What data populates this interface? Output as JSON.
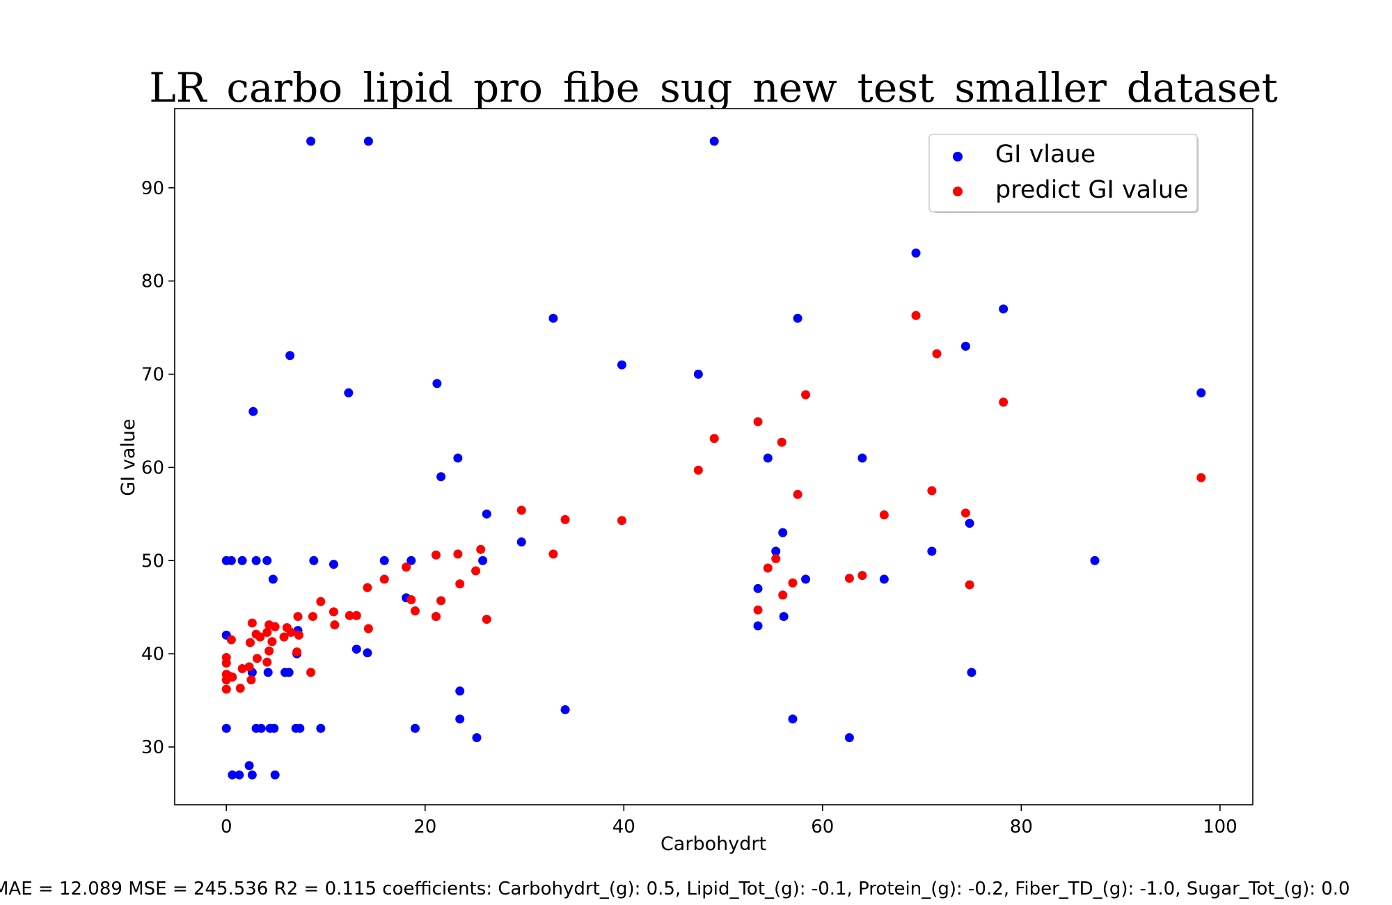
{
  "chart_data": {
    "type": "scatter",
    "title": "LR_carbo_lipid_pro_fibe_sug_new_test_smaller_dataset",
    "xlabel": "Carbohydrt",
    "ylabel": "GI value",
    "xlim": [
      -5.2,
      103.3
    ],
    "ylim": [
      23.8,
      98.5
    ],
    "xticks": [
      0,
      20,
      40,
      60,
      80,
      100
    ],
    "yticks": [
      30,
      40,
      50,
      60,
      70,
      80,
      90
    ],
    "grid": false,
    "legend_position": "upper right",
    "footer": "MAE = 12.089 MSE = 245.536 R2 = 0.115 coefficients: Carbohydrt_(g): 0.5, Lipid_Tot_(g): -0.1, Protein_(g): -0.2, Fiber_TD_(g): -1.0, Sugar_Tot_(g): 0.0",
    "series": [
      {
        "name": "GI vlaue",
        "color": "#0000ff",
        "x": [
          8.5,
          14.3,
          49.1,
          69.4,
          78.2,
          57.5,
          32.9,
          74.4,
          6.4,
          39.8,
          47.5,
          12.3,
          98.1,
          21.2,
          2.7,
          23.3,
          54.5,
          64.0,
          21.6,
          26.2,
          74.8,
          29.7,
          71.0,
          55.3,
          56.0,
          0.0,
          0.5,
          1.6,
          3.0,
          4.1,
          8.8,
          10.8,
          15.9,
          18.6,
          25.8,
          87.4,
          4.7,
          58.3,
          66.2,
          53.5,
          18.1,
          21.1,
          56.1,
          53.5,
          0.0,
          7.2,
          13.1,
          14.2,
          7.1,
          2.6,
          4.2,
          5.9,
          6.3,
          75.0,
          23.5,
          34.1,
          57.0,
          23.5,
          0.0,
          3.0,
          3.5,
          4.4,
          4.8,
          7.0,
          7.4,
          9.5,
          19.0,
          25.2,
          62.7,
          2.3,
          0.6,
          1.3,
          2.6,
          4.9
        ],
        "y": [
          95,
          95,
          95,
          83,
          77,
          76,
          76,
          73,
          72,
          71,
          70,
          68,
          68,
          69,
          66,
          61,
          61,
          61,
          59,
          55,
          54,
          52,
          51,
          51,
          53,
          50,
          50,
          50,
          50,
          50,
          50,
          49.6,
          50,
          50,
          50,
          50,
          48,
          48,
          48,
          47,
          46,
          44,
          44,
          43,
          42,
          42.5,
          40.5,
          40.1,
          40,
          38,
          38,
          38,
          38,
          38,
          36,
          34,
          33,
          33,
          32,
          32,
          32,
          32,
          32,
          32,
          32,
          32,
          32,
          31,
          31,
          28,
          27,
          27,
          27,
          27
        ]
      },
      {
        "name": "predict GI value",
        "color": "#ff0000",
        "x": [
          69.4,
          71.5,
          78.2,
          58.3,
          53.5,
          49.1,
          55.9,
          47.5,
          98.1,
          71.0,
          57.5,
          29.7,
          74.4,
          66.2,
          34.1,
          39.8,
          25.6,
          32.9,
          21.1,
          23.3,
          18.1,
          54.5,
          55.3,
          64.0,
          62.7,
          57.0,
          23.5,
          25.1,
          15.9,
          14.2,
          56.0,
          74.8,
          18.6,
          21.6,
          19.0,
          9.5,
          53.5,
          10.8,
          12.4,
          8.7,
          13.1,
          21.1,
          7.2,
          26.2,
          10.9,
          14.3,
          2.6,
          4.3,
          4.9,
          6.1,
          4.1,
          3.0,
          3.4,
          6.5,
          7.3,
          5.8,
          0.5,
          2.4,
          4.6,
          7.1,
          4.3,
          3.1,
          0.0,
          0.0,
          4.1,
          2.3,
          1.6,
          8.5,
          0.0,
          0.0,
          0.6,
          0.3,
          2.5,
          1.4,
          0.0
        ],
        "y": [
          76.3,
          72.2,
          67.0,
          67.8,
          64.9,
          63.1,
          62.7,
          59.7,
          58.9,
          57.5,
          57.1,
          55.4,
          55.1,
          54.9,
          54.4,
          54.3,
          51.2,
          50.7,
          50.6,
          50.7,
          49.3,
          49.2,
          50.2,
          48.4,
          48.1,
          47.6,
          47.5,
          48.9,
          48.0,
          47.1,
          46.3,
          47.4,
          45.8,
          45.7,
          44.6,
          45.6,
          44.7,
          44.5,
          44.1,
          44.0,
          44.1,
          44.0,
          44.0,
          43.7,
          43.1,
          42.7,
          43.3,
          43.1,
          42.9,
          42.8,
          42.3,
          42.1,
          41.8,
          42.3,
          42.0,
          41.8,
          41.5,
          41.2,
          41.3,
          40.2,
          40.3,
          39.5,
          39.6,
          39.0,
          39.1,
          38.6,
          38.4,
          38.0,
          37.8,
          37.2,
          37.5,
          37.6,
          37.2,
          36.3,
          36.2
        ]
      }
    ]
  }
}
